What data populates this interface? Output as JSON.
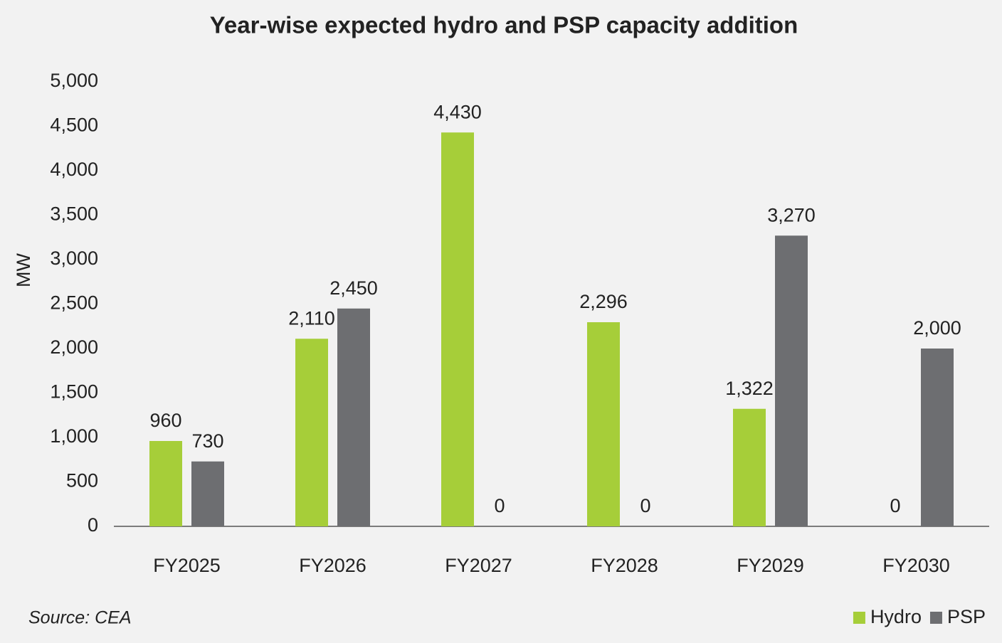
{
  "chart_data": {
    "type": "bar",
    "title": "Year-wise expected hydro and PSP capacity addition",
    "y_label": "MW",
    "source": "Source: CEA",
    "categories": [
      "FY2025",
      "FY2026",
      "FY2027",
      "FY2028",
      "FY2029",
      "FY2030"
    ],
    "series": [
      {
        "name": "Hydro",
        "color": "#a6ce39",
        "values": [
          960,
          2110,
          4430,
          2296,
          1322,
          0
        ],
        "value_labels": [
          "960",
          "2,110",
          "4,430",
          "2,296",
          "1,322",
          "0"
        ]
      },
      {
        "name": "PSP",
        "color": "#6d6e71",
        "values": [
          730,
          2450,
          0,
          0,
          3270,
          2000
        ],
        "value_labels": [
          "730",
          "2,450",
          "0",
          "0",
          "3,270",
          "2,000"
        ]
      }
    ],
    "ylim": [
      0,
      5000
    ],
    "yticks": [
      0,
      500,
      {
        "value": 1000,
        "label": "1,000"
      },
      {
        "value": 1500,
        "label": "1,500"
      },
      {
        "value": 2000,
        "label": "2,000"
      },
      {
        "value": 2500,
        "label": "2,500"
      },
      {
        "value": 3000,
        "label": "3,000"
      },
      {
        "value": 3500,
        "label": "3,500"
      },
      {
        "value": 4000,
        "label": "4,000"
      },
      {
        "value": 4500,
        "label": "4,500"
      },
      {
        "value": 5000,
        "label": "5,000"
      }
    ],
    "grid": false,
    "legend": "bottom-right"
  }
}
